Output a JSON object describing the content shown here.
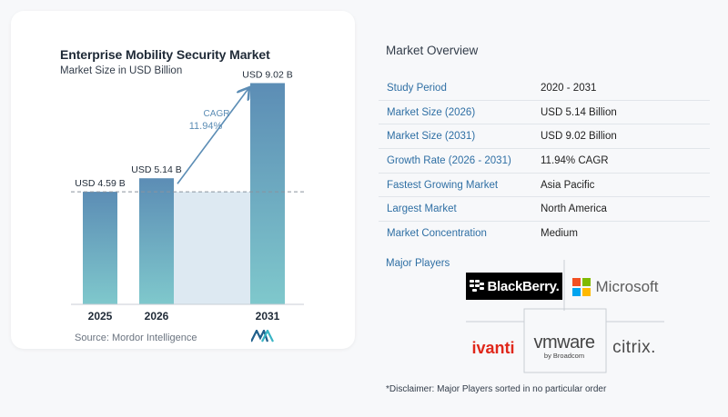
{
  "chart_data": {
    "type": "bar",
    "title": "Enterprise Mobility Security Market",
    "subtitle": "Market Size in USD Billion",
    "categories": [
      "2025",
      "2026",
      "2031"
    ],
    "values": [
      4.59,
      5.14,
      9.02
    ],
    "data_labels": [
      "USD 4.59 B",
      "USD 5.14 B",
      "USD 9.02 B"
    ],
    "ylim": [
      0,
      10
    ],
    "cagr_label": "CAGR",
    "cagr_value": "11.94%",
    "source": "Source:  Mordor Intelligence",
    "colors": {
      "bar_top": "#5c8db5",
      "bar_bottom": "#7fc8cc",
      "band": "#dde9f2",
      "arrow": "#5c8db5"
    }
  },
  "overview": {
    "title": "Market Overview",
    "rows": [
      {
        "label": "Study Period",
        "value": "2020 - 2031"
      },
      {
        "label": "Market Size (2026)",
        "value": "USD 5.14 Billion"
      },
      {
        "label": "Market Size (2031)",
        "value": "USD 9.02 Billion"
      },
      {
        "label": "Growth Rate (2026 - 2031)",
        "value": "11.94% CAGR"
      },
      {
        "label": "Fastest Growing Market",
        "value": "Asia Pacific"
      },
      {
        "label": "Largest Market",
        "value": "North America"
      },
      {
        "label": "Market Concentration",
        "value": "Medium"
      }
    ]
  },
  "players": {
    "title": "Major Players",
    "logos": {
      "blackberry": "BlackBerry.",
      "microsoft": "Microsoft",
      "ivanti": "ivanti",
      "vmware": "vmware",
      "vmware_sub": "by Broadcom",
      "citrix": "citrix."
    },
    "disclaimer": "*Disclaimer: Major Players sorted in no particular order"
  }
}
